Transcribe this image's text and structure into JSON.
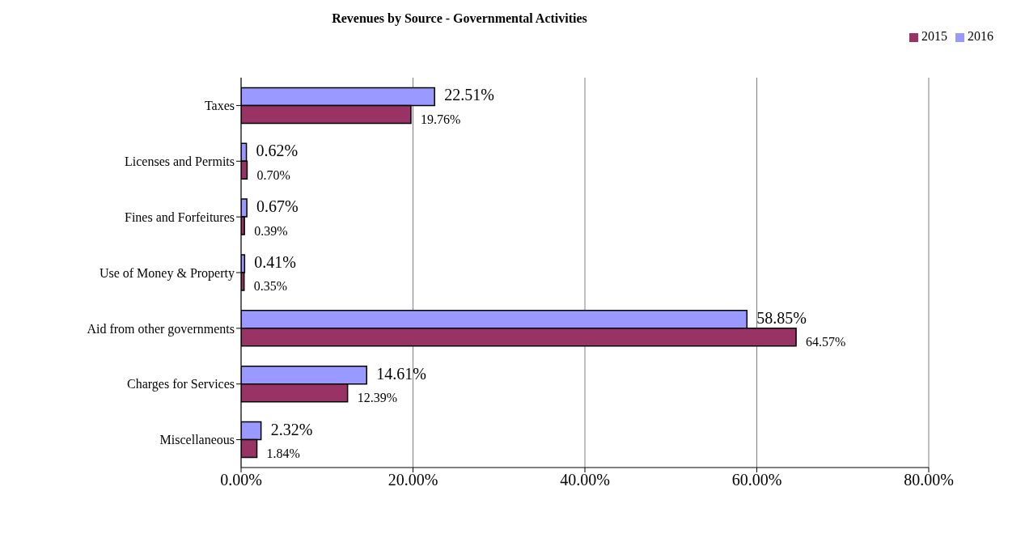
{
  "chart_data": {
    "type": "bar",
    "orientation": "horizontal",
    "title": "Revenues by Source - Governmental Activities",
    "categories": [
      "Taxes",
      "Licenses and Permits",
      "Fines and Forfeitures",
      "Use of Money & Property",
      "Aid from other governments",
      "Charges for Services",
      "Miscellaneous"
    ],
    "series": [
      {
        "name": "2016",
        "color": "#9999ff",
        "values": [
          22.51,
          0.62,
          0.67,
          0.41,
          58.85,
          14.61,
          2.32
        ],
        "value_labels": [
          "22.51%",
          "0.62%",
          "0.67%",
          "0.41%",
          "58.85%",
          "14.61%",
          "2.32%"
        ]
      },
      {
        "name": "2015",
        "color": "#993366",
        "values": [
          19.76,
          0.7,
          0.39,
          0.35,
          64.57,
          12.39,
          1.84
        ],
        "value_labels": [
          "19.76%",
          "0.70%",
          "0.39%",
          "0.35%",
          "64.57%",
          "12.39%",
          "1.84%"
        ]
      }
    ],
    "xlim": [
      0,
      80
    ],
    "xticks": [
      {
        "value": 0,
        "label": "0.00%"
      },
      {
        "value": 20,
        "label": "20.00%"
      },
      {
        "value": 40,
        "label": "40.00%"
      },
      {
        "value": 60,
        "label": "60.00%"
      },
      {
        "value": 80,
        "label": "80.00%"
      }
    ],
    "grid": "x",
    "legend": "top right"
  }
}
